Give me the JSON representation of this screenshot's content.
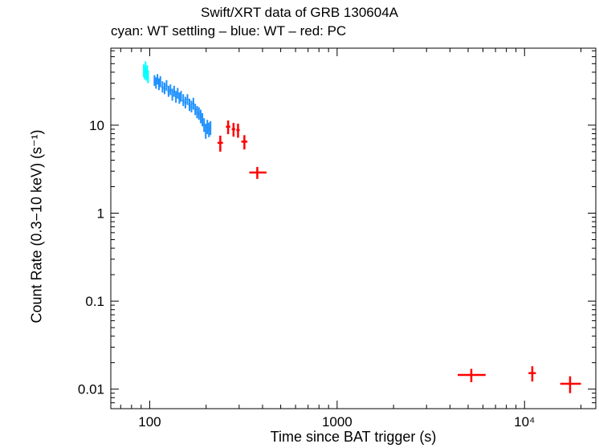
{
  "chart_data": {
    "type": "scatter",
    "title": "Swift/XRT data of GRB 130604A",
    "subtitle": "cyan: WT settling – blue: WT – red: PC",
    "xlabel": "Time since BAT trigger (s)",
    "ylabel": "Count Rate (0.3−10 keV) (s⁻¹)",
    "x_scale": "log",
    "y_scale": "log",
    "xlim": [
      62,
      24000
    ],
    "ylim": [
      0.006,
      75
    ],
    "x_ticks": [
      {
        "value": 100,
        "label": "100"
      },
      {
        "value": 1000,
        "label": "1000"
      },
      {
        "value": 10000,
        "label": "10⁴"
      }
    ],
    "y_ticks": [
      {
        "value": 0.01,
        "label": "0.01"
      },
      {
        "value": 0.1,
        "label": "0.1"
      },
      {
        "value": 1,
        "label": "1"
      },
      {
        "value": 10,
        "label": "10"
      }
    ],
    "grid": false,
    "series": [
      {
        "name": "WT settling",
        "color": "#00ffff",
        "points": [
          {
            "x": 93.0,
            "y": 41,
            "xerr": [
              0.5,
              0.5
            ],
            "yerr": [
              6,
              8
            ]
          },
          {
            "x": 94.0,
            "y": 38,
            "xerr": [
              0.5,
              0.5
            ],
            "yerr": [
              5,
              7
            ]
          },
          {
            "x": 95.0,
            "y": 44,
            "xerr": [
              0.5,
              0.5
            ],
            "yerr": [
              6,
              9
            ]
          },
          {
            "x": 96.0,
            "y": 37,
            "xerr": [
              0.5,
              0.5
            ],
            "yerr": [
              5,
              7
            ]
          },
          {
            "x": 97.0,
            "y": 40,
            "xerr": [
              0.5,
              0.5
            ],
            "yerr": [
              6,
              8
            ]
          },
          {
            "x": 98.0,
            "y": 35,
            "xerr": [
              0.5,
              0.5
            ],
            "yerr": [
              5,
              7
            ]
          }
        ]
      },
      {
        "name": "WT",
        "color": "#1e90ff",
        "points": [
          {
            "x": 106,
            "y": 32,
            "xerr": [
              1,
              1
            ],
            "yerr": [
              4,
              5
            ]
          },
          {
            "x": 108,
            "y": 30,
            "xerr": [
              1,
              1
            ],
            "yerr": [
              4,
              5
            ]
          },
          {
            "x": 110,
            "y": 33,
            "xerr": [
              1,
              1
            ],
            "yerr": [
              4,
              5
            ]
          },
          {
            "x": 112,
            "y": 29,
            "xerr": [
              1,
              1
            ],
            "yerr": [
              4,
              5
            ]
          },
          {
            "x": 114,
            "y": 31,
            "xerr": [
              1,
              1
            ],
            "yerr": [
              4,
              5
            ]
          },
          {
            "x": 117,
            "y": 27,
            "xerr": [
              1.5,
              1.5
            ],
            "yerr": [
              3.5,
              4.5
            ]
          },
          {
            "x": 120,
            "y": 26,
            "xerr": [
              1.5,
              1.5
            ],
            "yerr": [
              3.5,
              4.5
            ]
          },
          {
            "x": 123,
            "y": 28,
            "xerr": [
              1.5,
              1.5
            ],
            "yerr": [
              3.5,
              4.5
            ]
          },
          {
            "x": 126,
            "y": 24,
            "xerr": [
              1.5,
              1.5
            ],
            "yerr": [
              3,
              4
            ]
          },
          {
            "x": 129,
            "y": 25,
            "xerr": [
              1.5,
              1.5
            ],
            "yerr": [
              3,
              4
            ]
          },
          {
            "x": 132,
            "y": 22,
            "xerr": [
              1.5,
              1.5
            ],
            "yerr": [
              3,
              4
            ]
          },
          {
            "x": 135,
            "y": 24,
            "xerr": [
              1.5,
              1.5
            ],
            "yerr": [
              3,
              4
            ]
          },
          {
            "x": 138,
            "y": 21,
            "xerr": [
              1.5,
              1.5
            ],
            "yerr": [
              3,
              3.5
            ]
          },
          {
            "x": 141,
            "y": 23,
            "xerr": [
              1.5,
              1.5
            ],
            "yerr": [
              3,
              3.5
            ]
          },
          {
            "x": 144,
            "y": 20,
            "xerr": [
              1.5,
              1.5
            ],
            "yerr": [
              2.5,
              3.5
            ]
          },
          {
            "x": 147,
            "y": 21,
            "xerr": [
              1.5,
              1.5
            ],
            "yerr": [
              2.5,
              3.5
            ]
          },
          {
            "x": 151,
            "y": 19,
            "xerr": [
              2,
              2
            ],
            "yerr": [
              2.5,
              3.5
            ]
          },
          {
            "x": 155,
            "y": 18,
            "xerr": [
              2,
              2
            ],
            "yerr": [
              2.5,
              3
            ]
          },
          {
            "x": 159,
            "y": 19.5,
            "xerr": [
              2,
              2
            ],
            "yerr": [
              2.5,
              3
            ]
          },
          {
            "x": 163,
            "y": 17,
            "xerr": [
              2,
              2
            ],
            "yerr": [
              2.5,
              3
            ]
          },
          {
            "x": 167,
            "y": 16,
            "xerr": [
              2,
              2
            ],
            "yerr": [
              2,
              3
            ]
          },
          {
            "x": 171,
            "y": 17.5,
            "xerr": [
              2,
              2
            ],
            "yerr": [
              2.5,
              3
            ]
          },
          {
            "x": 175,
            "y": 15,
            "xerr": [
              2,
              2
            ],
            "yerr": [
              2,
              2.5
            ]
          },
          {
            "x": 179,
            "y": 14,
            "xerr": [
              2,
              2
            ],
            "yerr": [
              2,
              2.5
            ]
          },
          {
            "x": 183,
            "y": 13.5,
            "xerr": [
              2,
              2
            ],
            "yerr": [
              2,
              2.5
            ]
          },
          {
            "x": 187,
            "y": 12.5,
            "xerr": [
              2,
              2
            ],
            "yerr": [
              2,
              2.5
            ]
          },
          {
            "x": 191,
            "y": 11.5,
            "xerr": [
              2,
              2
            ],
            "yerr": [
              1.8,
              2.2
            ]
          },
          {
            "x": 195,
            "y": 10,
            "xerr": [
              2,
              2
            ],
            "yerr": [
              1.6,
              2
            ]
          },
          {
            "x": 199,
            "y": 8.5,
            "xerr": [
              2,
              2
            ],
            "yerr": [
              1.5,
              1.9
            ]
          },
          {
            "x": 203,
            "y": 9.5,
            "xerr": [
              2,
              2
            ],
            "yerr": [
              1.6,
              2
            ]
          },
          {
            "x": 207,
            "y": 8.8,
            "xerr": [
              2,
              2
            ],
            "yerr": [
              1.5,
              1.9
            ]
          },
          {
            "x": 211,
            "y": 9.2,
            "xerr": [
              2,
              2
            ],
            "yerr": [
              1.5,
              1.9
            ]
          }
        ]
      },
      {
        "name": "PC",
        "color": "#ff0000",
        "points": [
          {
            "x": 238,
            "y": 6.3,
            "xerr": [
              8,
              8
            ],
            "yerr": [
              1.3,
              1.3
            ]
          },
          {
            "x": 262,
            "y": 9.6,
            "xerr": [
              7,
              7
            ],
            "yerr": [
              1.7,
              1.7
            ]
          },
          {
            "x": 280,
            "y": 9.0,
            "xerr": [
              6,
              6
            ],
            "yerr": [
              1.6,
              1.6
            ]
          },
          {
            "x": 296,
            "y": 8.8,
            "xerr": [
              6,
              6
            ],
            "yerr": [
              1.6,
              1.6
            ]
          },
          {
            "x": 320,
            "y": 6.5,
            "xerr": [
              12,
              12
            ],
            "yerr": [
              1.2,
              1.2
            ]
          },
          {
            "x": 375,
            "y": 2.9,
            "xerr": [
              35,
              45
            ],
            "yerr": [
              0.45,
              0.45
            ]
          },
          {
            "x": 5200,
            "y": 0.0145,
            "xerr": [
              800,
              1000
            ],
            "yerr": [
              0.0025,
              0.0025
            ]
          },
          {
            "x": 11000,
            "y": 0.0152,
            "xerr": [
              500,
              500
            ],
            "yerr": [
              0.003,
              0.003
            ]
          },
          {
            "x": 17500,
            "y": 0.0115,
            "xerr": [
              2000,
              2500
            ],
            "yerr": [
              0.0025,
              0.0025
            ]
          }
        ]
      }
    ]
  }
}
